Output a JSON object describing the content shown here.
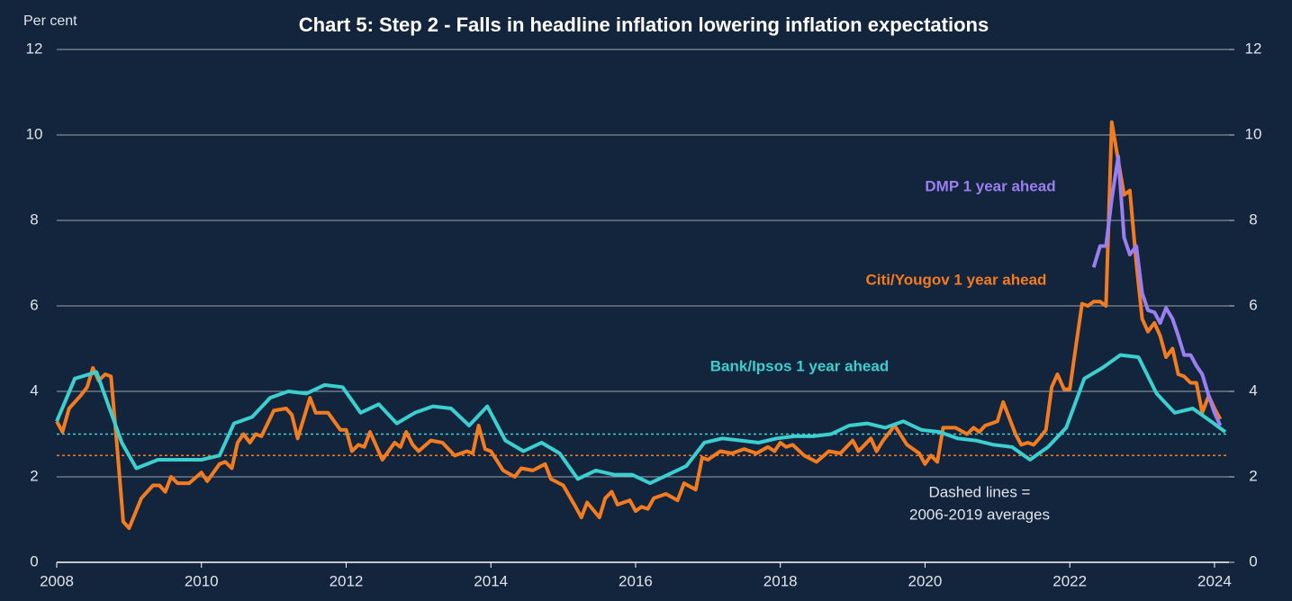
{
  "chart_data": {
    "type": "line",
    "title": "Chart 5: Step 2 - Falls in headline inflation lowering inflation expectations",
    "ylabel": "Per cent",
    "annotation": [
      "Dashed lines =",
      "2006-2019 averages"
    ],
    "xlim": [
      2008,
      2024.2
    ],
    "xticks": [
      2008,
      2010,
      2012,
      2014,
      2016,
      2018,
      2020,
      2022,
      2024
    ],
    "ylim": [
      0,
      12
    ],
    "yticks": [
      0,
      2,
      4,
      6,
      8,
      10,
      12
    ],
    "y2lim": [
      0,
      12
    ],
    "y2ticks": [
      0,
      2,
      4,
      6,
      8,
      10,
      12
    ],
    "grid": true,
    "reference_lines": [
      {
        "value": 3.0,
        "color": "#3ccfd0"
      },
      {
        "value": 2.5,
        "color": "#f47c20"
      }
    ],
    "series": [
      {
        "name": "Citi/Yougov 1 year ahead",
        "color": "#f47c20",
        "x": [
          2008.0,
          2008.08,
          2008.17,
          2008.33,
          2008.42,
          2008.5,
          2008.58,
          2008.67,
          2008.75,
          2008.83,
          2008.92,
          2009.0,
          2009.17,
          2009.33,
          2009.42,
          2009.5,
          2009.58,
          2009.67,
          2009.83,
          2010.0,
          2010.08,
          2010.25,
          2010.33,
          2010.42,
          2010.5,
          2010.58,
          2010.67,
          2010.75,
          2010.83,
          2011.0,
          2011.17,
          2011.25,
          2011.33,
          2011.5,
          2011.58,
          2011.75,
          2011.92,
          2012.0,
          2012.08,
          2012.17,
          2012.25,
          2012.33,
          2012.5,
          2012.67,
          2012.75,
          2012.83,
          2012.92,
          2013.0,
          2013.17,
          2013.33,
          2013.5,
          2013.67,
          2013.75,
          2013.83,
          2013.92,
          2014.0,
          2014.17,
          2014.33,
          2014.42,
          2014.58,
          2014.75,
          2014.83,
          2015.0,
          2015.17,
          2015.25,
          2015.33,
          2015.5,
          2015.58,
          2015.67,
          2015.75,
          2015.92,
          2016.0,
          2016.08,
          2016.17,
          2016.25,
          2016.42,
          2016.58,
          2016.67,
          2016.83,
          2016.92,
          2017.0,
          2017.17,
          2017.33,
          2017.5,
          2017.67,
          2017.83,
          2017.92,
          2018.0,
          2018.08,
          2018.17,
          2018.33,
          2018.5,
          2018.67,
          2018.83,
          2019.0,
          2019.08,
          2019.25,
          2019.33,
          2019.42,
          2019.58,
          2019.75,
          2019.92,
          2020.0,
          2020.08,
          2020.17,
          2020.25,
          2020.42,
          2020.58,
          2020.67,
          2020.75,
          2020.83,
          2020.92,
          2021.0,
          2021.08,
          2021.25,
          2021.33,
          2021.42,
          2021.5,
          2021.58,
          2021.67,
          2021.75,
          2021.83,
          2021.92,
          2022.0,
          2022.08,
          2022.17,
          2022.25,
          2022.33,
          2022.42,
          2022.5,
          2022.58,
          2022.67,
          2022.75,
          2022.83,
          2022.92,
          2023.0,
          2023.08,
          2023.17,
          2023.25,
          2023.33,
          2023.42,
          2023.5,
          2023.58,
          2023.67,
          2023.75,
          2023.83,
          2023.92,
          2024.0,
          2024.08
        ],
        "values": [
          3.3,
          3.05,
          3.6,
          3.9,
          4.1,
          4.55,
          4.25,
          4.4,
          4.35,
          2.8,
          0.95,
          0.8,
          1.5,
          1.8,
          1.8,
          1.65,
          2.0,
          1.85,
          1.85,
          2.1,
          1.9,
          2.3,
          2.35,
          2.2,
          2.8,
          3.0,
          2.8,
          3.0,
          2.95,
          3.55,
          3.6,
          3.45,
          2.9,
          3.85,
          3.5,
          3.5,
          3.1,
          3.1,
          2.6,
          2.75,
          2.7,
          3.05,
          2.4,
          2.8,
          2.7,
          3.05,
          2.75,
          2.6,
          2.85,
          2.8,
          2.5,
          2.6,
          2.55,
          3.2,
          2.65,
          2.6,
          2.15,
          2.0,
          2.2,
          2.15,
          2.3,
          1.95,
          1.8,
          1.3,
          1.05,
          1.4,
          1.05,
          1.5,
          1.65,
          1.35,
          1.45,
          1.2,
          1.3,
          1.25,
          1.5,
          1.6,
          1.45,
          1.85,
          1.7,
          2.45,
          2.4,
          2.6,
          2.55,
          2.65,
          2.55,
          2.7,
          2.6,
          2.8,
          2.7,
          2.75,
          2.5,
          2.35,
          2.6,
          2.55,
          2.85,
          2.6,
          2.9,
          2.6,
          2.85,
          3.2,
          2.75,
          2.55,
          2.3,
          2.5,
          2.35,
          3.15,
          3.15,
          3.0,
          3.15,
          3.05,
          3.2,
          3.25,
          3.3,
          3.75,
          3.0,
          2.75,
          2.8,
          2.75,
          2.9,
          3.1,
          4.1,
          4.4,
          4.05,
          4.05,
          5.0,
          6.05,
          6.0,
          6.1,
          6.1,
          6.0,
          10.3,
          9.4,
          8.6,
          8.7,
          7.0,
          5.7,
          5.4,
          5.6,
          5.3,
          4.8,
          5.0,
          4.4,
          4.35,
          4.2,
          4.2,
          3.5,
          3.9,
          3.6,
          3.35
        ]
      },
      {
        "name": "Bank/Ipsos 1 year ahead",
        "color": "#3ccfd0",
        "x": [
          2008.0,
          2008.25,
          2008.55,
          2008.9,
          2009.1,
          2009.4,
          2009.7,
          2010.0,
          2010.25,
          2010.45,
          2010.7,
          2010.95,
          2011.2,
          2011.45,
          2011.7,
          2011.95,
          2012.2,
          2012.45,
          2012.7,
          2012.95,
          2013.2,
          2013.45,
          2013.7,
          2013.95,
          2014.2,
          2014.45,
          2014.7,
          2014.95,
          2015.2,
          2015.45,
          2015.7,
          2015.95,
          2016.2,
          2016.45,
          2016.7,
          2016.95,
          2017.2,
          2017.45,
          2017.7,
          2017.95,
          2018.2,
          2018.45,
          2018.7,
          2018.95,
          2019.2,
          2019.45,
          2019.7,
          2019.95,
          2020.2,
          2020.45,
          2020.7,
          2020.95,
          2021.2,
          2021.45,
          2021.7,
          2021.95,
          2022.2,
          2022.45,
          2022.7,
          2022.95,
          2023.2,
          2023.45,
          2023.7,
          2023.95,
          2024.15
        ],
        "values": [
          3.3,
          4.3,
          4.45,
          2.8,
          2.2,
          2.4,
          2.4,
          2.4,
          2.5,
          3.25,
          3.4,
          3.85,
          4.0,
          3.95,
          4.15,
          4.1,
          3.5,
          3.7,
          3.25,
          3.5,
          3.65,
          3.6,
          3.2,
          3.65,
          2.85,
          2.6,
          2.8,
          2.55,
          1.95,
          2.15,
          2.05,
          2.05,
          1.85,
          2.05,
          2.25,
          2.8,
          2.9,
          2.85,
          2.8,
          2.9,
          2.95,
          2.95,
          3.0,
          3.2,
          3.25,
          3.15,
          3.3,
          3.1,
          3.05,
          2.9,
          2.85,
          2.75,
          2.7,
          2.4,
          2.7,
          3.15,
          4.3,
          4.55,
          4.85,
          4.8,
          3.95,
          3.5,
          3.6,
          3.3,
          3.05
        ]
      },
      {
        "name": "DMP 1 year ahead",
        "color": "#9b7ef0",
        "x": [
          2022.33,
          2022.42,
          2022.5,
          2022.58,
          2022.67,
          2022.75,
          2022.83,
          2022.92,
          2023.0,
          2023.08,
          2023.17,
          2023.25,
          2023.33,
          2023.42,
          2023.5,
          2023.58,
          2023.67,
          2023.75,
          2023.83,
          2023.92,
          2024.0,
          2024.08
        ],
        "values": [
          6.9,
          7.4,
          7.4,
          8.5,
          9.5,
          7.6,
          7.2,
          7.4,
          6.3,
          5.9,
          5.85,
          5.6,
          5.95,
          5.7,
          5.3,
          4.85,
          4.85,
          4.6,
          4.4,
          3.9,
          3.5,
          3.2
        ]
      }
    ]
  }
}
